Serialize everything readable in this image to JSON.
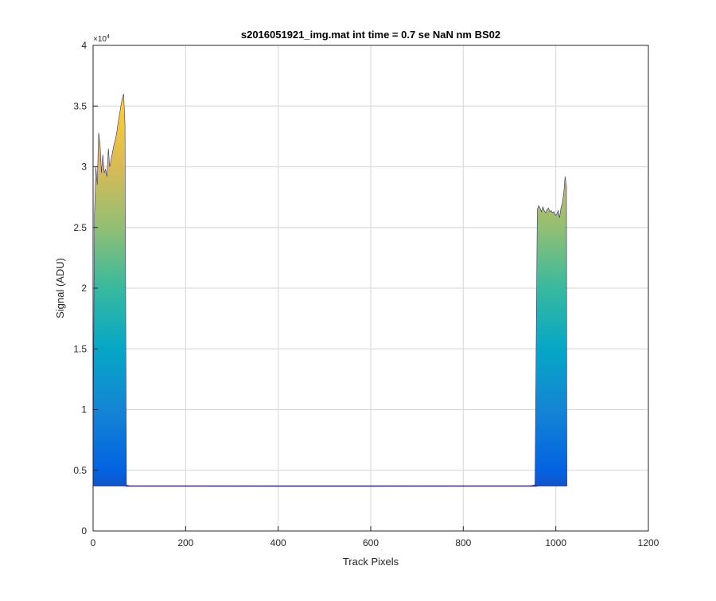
{
  "chart_data": {
    "type": "area",
    "title": "s2016051921_img.mat int time = 0.7 se  NaN nm BS02",
    "xlabel": "Track Pixels",
    "ylabel": "Signal (ADU)",
    "xlim": [
      0,
      1200
    ],
    "ylim": [
      0,
      40000
    ],
    "y_exponent_label": "×10",
    "y_exponent_power": "4",
    "xticks": [
      "0",
      "200",
      "400",
      "600",
      "800",
      "1000",
      "1200"
    ],
    "yticks": [
      "0",
      "0.5",
      "1",
      "1.5",
      "2",
      "2.5",
      "3",
      "3.5",
      "4"
    ],
    "grid": true,
    "baseline": 3700,
    "colormap": [
      "#352a87",
      "#0363e1",
      "#1485d4",
      "#06a7c6",
      "#38b99e",
      "#92bf73",
      "#d9ba56",
      "#fcce2e",
      "#f9fb0e"
    ],
    "series": [
      {
        "x": [
          0,
          3,
          6,
          9,
          12,
          15,
          18,
          21,
          24,
          27,
          30,
          33,
          36,
          39,
          42,
          45,
          48,
          51,
          54,
          57,
          60,
          63,
          66,
          69,
          72,
          75,
          80,
          100,
          200,
          400,
          600,
          800,
          900,
          940,
          950,
          955
        ],
        "y": [
          5000,
          26000,
          30000,
          28500,
          32800,
          32000,
          29500,
          31000,
          29500,
          29800,
          29200,
          31500,
          30000,
          30600,
          31200,
          31800,
          32200,
          32800,
          33600,
          34300,
          35000,
          35600,
          36000,
          33500,
          3800,
          3750,
          3720,
          3700,
          3690,
          3680,
          3680,
          3690,
          3700,
          3710,
          3750,
          3800
        ]
      },
      {
        "x": [
          955,
          960,
          963,
          966,
          969,
          972,
          975,
          978,
          981,
          984,
          987,
          990,
          993,
          996,
          999,
          1002,
          1005,
          1008,
          1011,
          1014,
          1017,
          1020,
          1023,
          1024
        ],
        "y": [
          3800,
          26500,
          26800,
          26600,
          26300,
          26700,
          26400,
          26200,
          26500,
          26600,
          26300,
          26400,
          26200,
          26300,
          26000,
          26100,
          26400,
          25800,
          26600,
          27000,
          27800,
          29200,
          28400,
          3700
        ]
      }
    ]
  }
}
